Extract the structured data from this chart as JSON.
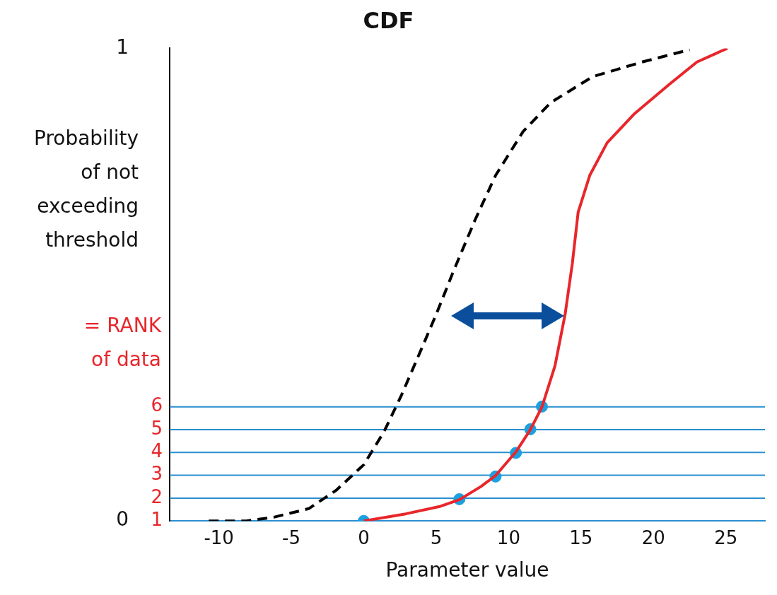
{
  "chart_data": {
    "type": "line",
    "title": "CDF",
    "xlabel": "Parameter value",
    "ylabel": "Probability of not exceeding threshold",
    "annotations": [
      "= RANK of data"
    ],
    "xlim": [
      -13.4,
      27.7
    ],
    "ylim": [
      0,
      1
    ],
    "xticks": [
      -10,
      -5,
      0,
      5,
      10,
      15,
      20,
      25
    ],
    "yticks": [
      0,
      1
    ],
    "y2lim": [
      1,
      21.7
    ],
    "y2ticks": [
      1,
      2,
      3,
      4,
      5,
      6
    ],
    "grid": false,
    "legend": false,
    "ref_lines": [
      {
        "axis": "y2",
        "value": 2,
        "color": "#2a8fd0"
      },
      {
        "axis": "y2",
        "value": 3,
        "color": "#2a8fd0"
      },
      {
        "axis": "y2",
        "value": 4,
        "color": "#2a8fd0"
      },
      {
        "axis": "y2",
        "value": 5,
        "color": "#2a8fd0"
      },
      {
        "axis": "y2",
        "value": 6,
        "color": "#2a8fd0"
      }
    ],
    "series": [
      {
        "type": "line",
        "color": "#000000",
        "line_style": "dashed",
        "marker": "none",
        "x": [
          -10.7,
          -8.1,
          -6.2,
          -3.8,
          -1.9,
          0,
          1.4,
          2.6,
          3.8,
          5.0,
          6.2,
          7.7,
          9.1,
          11.0,
          12.9,
          15.8,
          19.2,
          22.5
        ],
        "values": [
          0,
          0,
          0.008,
          0.026,
          0.065,
          0.119,
          0.189,
          0.266,
          0.351,
          0.437,
          0.529,
          0.638,
          0.731,
          0.824,
          0.885,
          0.94,
          0.971,
          0.997
        ]
      },
      {
        "type": "line",
        "color": "#e8262b",
        "line_style": "solid",
        "marker": "none",
        "x": [
          0,
          2.9,
          5.3,
          6.6,
          8.1,
          9.1,
          10.5,
          11.5,
          12.3,
          13.2,
          13.9,
          14.4,
          14.8,
          15.6,
          16.8,
          18.7,
          21.1,
          23.0,
          25.1
        ],
        "values": [
          0,
          0.015,
          0.031,
          0.045,
          0.073,
          0.096,
          0.146,
          0.193,
          0.241,
          0.328,
          0.437,
          0.545,
          0.653,
          0.731,
          0.8,
          0.862,
          0.924,
          0.971,
          1.0
        ]
      },
      {
        "type": "scatter",
        "color": "#1ba0e0",
        "marker": "circle",
        "x": [
          0,
          6.6,
          9.1,
          10.5,
          11.5,
          12.3
        ],
        "values": [
          0,
          0.046,
          0.094,
          0.144,
          0.194,
          0.242
        ]
      }
    ]
  }
}
